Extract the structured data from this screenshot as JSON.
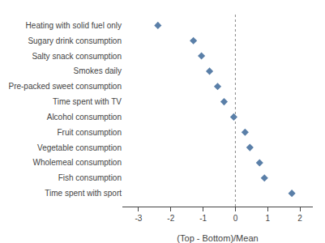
{
  "chart_data": {
    "type": "scatter",
    "categories": [
      "Time spent with sport",
      "Fish consumption",
      "Wholemeal consumption",
      "Vegetable consumption",
      "Fruit consumption",
      "Alcohol consumption",
      "Time spent with TV",
      "Pre-packed sweet consumption",
      "Smokes daily",
      "Salty snack consumption",
      "Sugary drink consumption",
      "Heating with solid fuel only"
    ],
    "values": [
      1.75,
      0.9,
      0.75,
      0.45,
      0.3,
      -0.05,
      -0.35,
      -0.55,
      -0.8,
      -1.05,
      -1.3,
      -2.4
    ],
    "color": "#5a7fa8",
    "marker": "diamond",
    "xlabel": "(Top - Bottom)/Mean",
    "xlim": [
      -3.5,
      2.4
    ],
    "xticks": [
      -3,
      -2,
      -1,
      0,
      1,
      2
    ],
    "vline": {
      "x": 0,
      "color": "#888888",
      "line_style": "dotted"
    },
    "grid": false
  }
}
